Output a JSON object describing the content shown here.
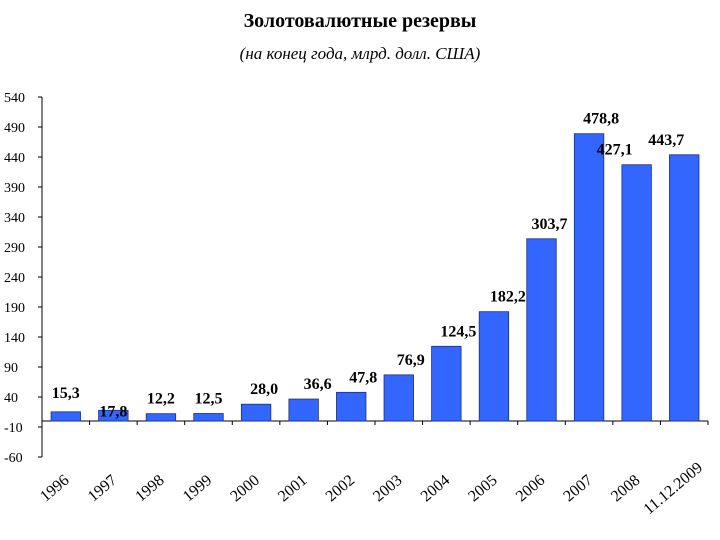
{
  "chart_data": {
    "type": "bar",
    "title": "Золотовалютные резервы",
    "subtitle": "(на конец года, млрд. долл. США)",
    "xlabel": "",
    "ylabel": "",
    "ylim": [
      -60,
      540
    ],
    "yticks": [
      "540",
      "490",
      "440",
      "390",
      "340",
      "290",
      "240",
      "190",
      "140",
      "90",
      "40",
      "-10",
      "-60"
    ],
    "categories": [
      "1996",
      "1997",
      "1998",
      "1999",
      "2000",
      "2001",
      "2002",
      "2003",
      "2004",
      "2005",
      "2006",
      "2007",
      "2008",
      "11.12.2009"
    ],
    "values": [
      15.3,
      17.8,
      12.2,
      12.5,
      28.0,
      36.6,
      47.8,
      76.9,
      124.5,
      182.2,
      303.7,
      478.8,
      427.1,
      443.7
    ],
    "value_labels": [
      "15,3",
      "17,8",
      "12,2",
      "12,5",
      "28,0",
      "36,6",
      "47,8",
      "76,9",
      "124,5",
      "182,2",
      "303,7",
      "478,8",
      "427,1",
      "443,7"
    ],
    "grid": false,
    "legend": "none",
    "bar_color": "#3366ff"
  }
}
